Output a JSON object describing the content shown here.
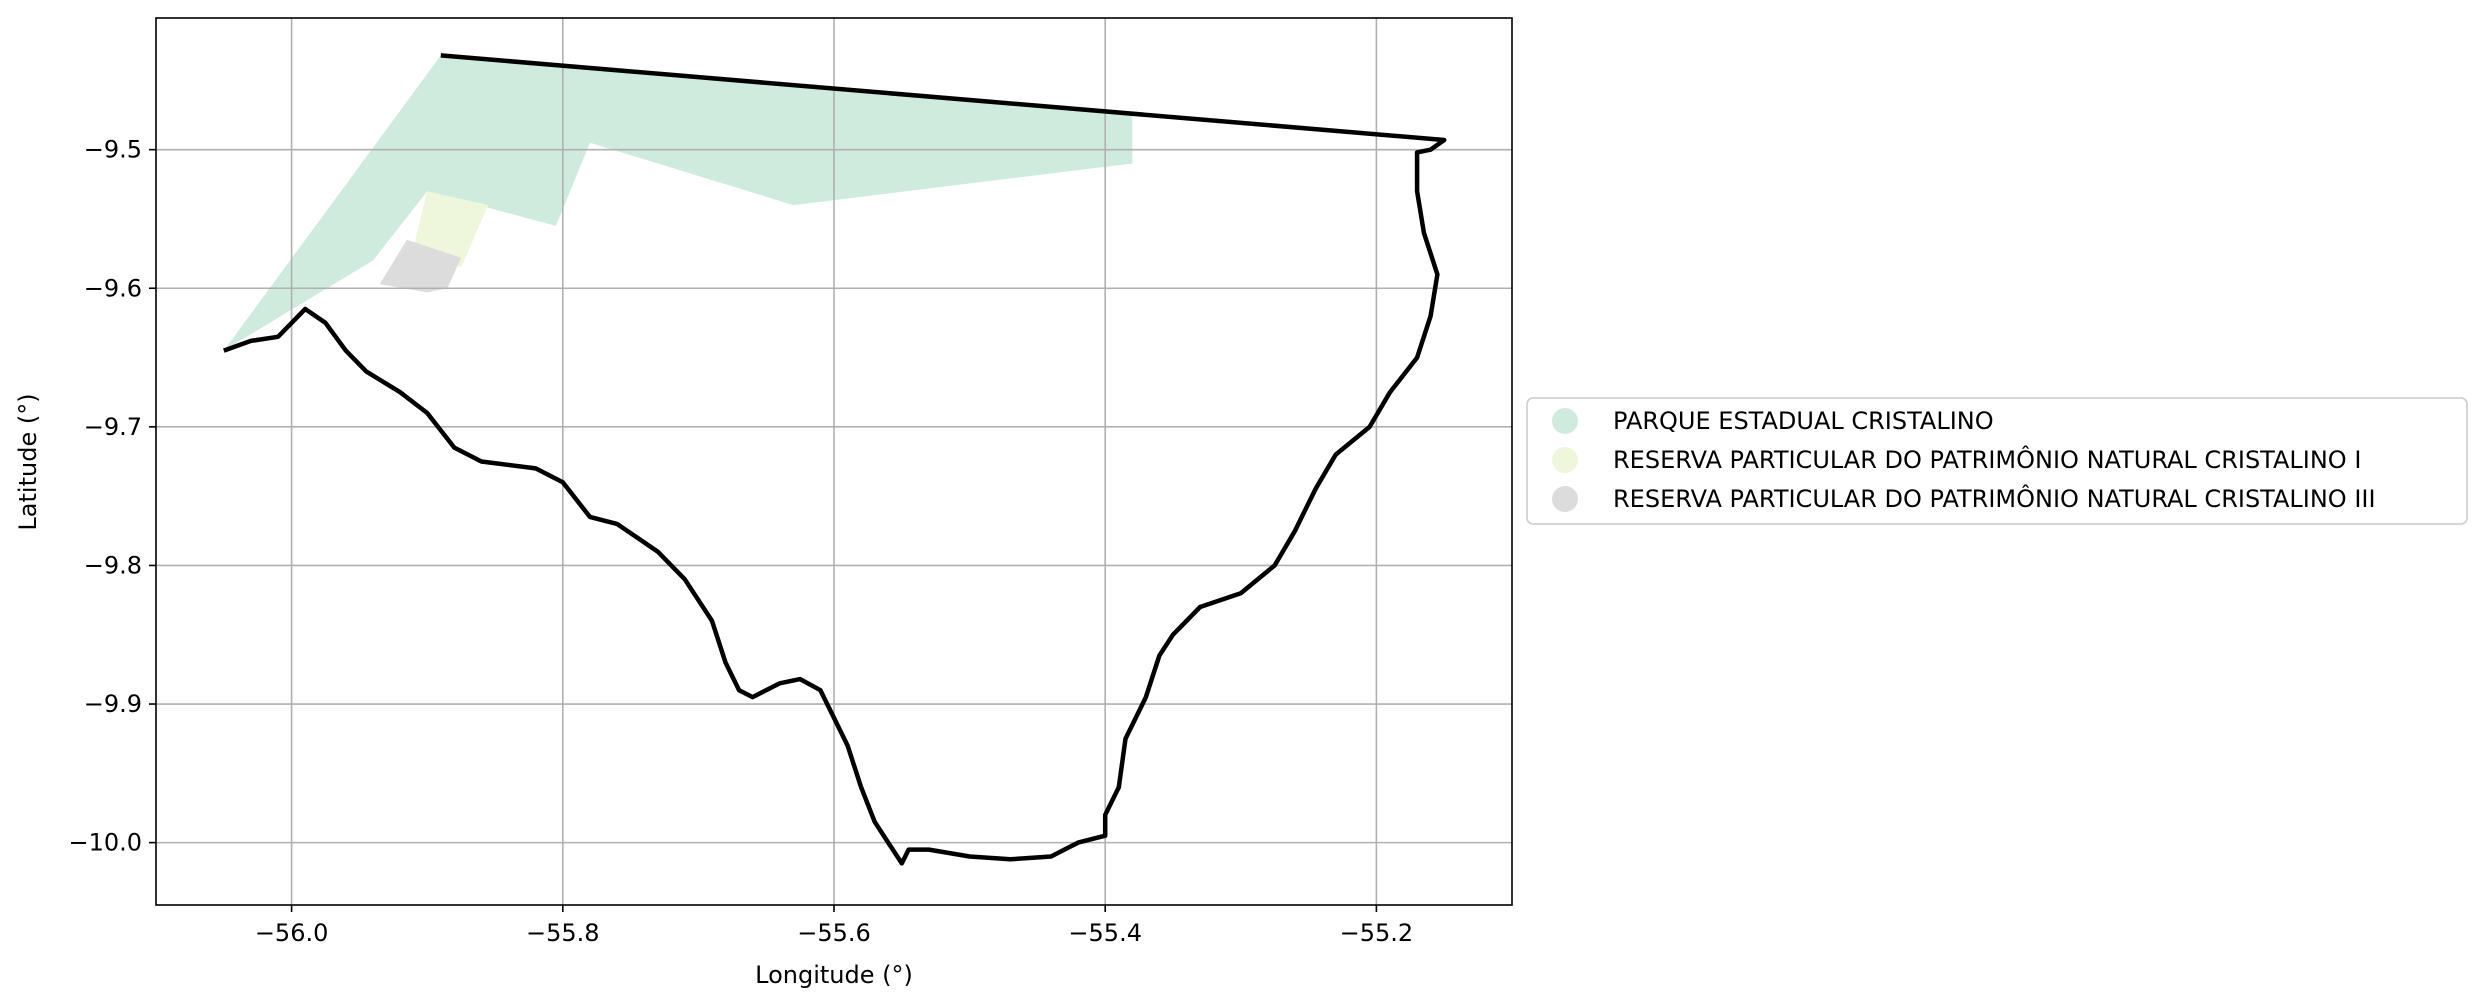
{
  "chart_data": {
    "type": "map",
    "xlabel": "Longitude (°)",
    "ylabel": "Latitude (°)",
    "xlim": [
      -56.1,
      -55.1
    ],
    "ylim": [
      -10.045,
      -9.405
    ],
    "xticks": [
      -56.0,
      -55.8,
      -55.6,
      -55.4,
      -55.2
    ],
    "xtick_labels": [
      "−56.0",
      "−55.8",
      "−55.6",
      "−55.4",
      "−55.2"
    ],
    "yticks": [
      -9.5,
      -9.6,
      -9.7,
      -9.8,
      -9.9,
      -10.0
    ],
    "ytick_labels": [
      "−9.5",
      "−9.6",
      "−9.7",
      "−9.8",
      "−9.9",
      "−10.0"
    ],
    "grid": true,
    "legend_position": "right",
    "layers": [
      {
        "name": "PARQUE ESTADUAL CRISTALINO",
        "color": "#cfebde",
        "polygon": [
          [
            -55.89,
            -9.432
          ],
          [
            -55.38,
            -9.475
          ],
          [
            -55.38,
            -9.51
          ],
          [
            -55.63,
            -9.54
          ],
          [
            -55.78,
            -9.495
          ],
          [
            -55.805,
            -9.555
          ],
          [
            -55.9,
            -9.53
          ],
          [
            -55.94,
            -9.58
          ],
          [
            -56.05,
            -9.645
          ]
        ]
      },
      {
        "name": "RESERVA PARTICULAR DO PATRIMÔNIO NATURAL CRISTALINO I",
        "color": "#eef7dc",
        "polygon": [
          [
            -55.9,
            -9.53
          ],
          [
            -55.855,
            -9.54
          ],
          [
            -55.875,
            -9.585
          ],
          [
            -55.91,
            -9.57
          ]
        ]
      },
      {
        "name": "RESERVA PARTICULAR DO PATRIMÔNIO NATURAL CRISTALINO III",
        "color": "#dcdcdc",
        "polygon": [
          [
            -55.915,
            -9.565
          ],
          [
            -55.875,
            -9.578
          ],
          [
            -55.885,
            -9.6
          ],
          [
            -55.9,
            -9.603
          ],
          [
            -55.935,
            -9.597
          ]
        ]
      }
    ],
    "boundary": [
      [
        -55.89,
        -9.432
      ],
      [
        -55.15,
        -9.493
      ],
      [
        -55.16,
        -9.5
      ],
      [
        -55.17,
        -9.502
      ],
      [
        -55.17,
        -9.53
      ],
      [
        -55.165,
        -9.56
      ],
      [
        -55.155,
        -9.59
      ],
      [
        -55.16,
        -9.62
      ],
      [
        -55.17,
        -9.65
      ],
      [
        -55.19,
        -9.675
      ],
      [
        -55.205,
        -9.7
      ],
      [
        -55.23,
        -9.72
      ],
      [
        -55.245,
        -9.745
      ],
      [
        -55.26,
        -9.775
      ],
      [
        -55.275,
        -9.8
      ],
      [
        -55.3,
        -9.82
      ],
      [
        -55.33,
        -9.83
      ],
      [
        -55.35,
        -9.85
      ],
      [
        -55.36,
        -9.865
      ],
      [
        -55.37,
        -9.895
      ],
      [
        -55.385,
        -9.925
      ],
      [
        -55.39,
        -9.96
      ],
      [
        -55.4,
        -9.98
      ],
      [
        -55.4,
        -9.995
      ],
      [
        -55.42,
        -10.0
      ],
      [
        -55.44,
        -10.01
      ],
      [
        -55.47,
        -10.012
      ],
      [
        -55.5,
        -10.01
      ],
      [
        -55.53,
        -10.005
      ],
      [
        -55.545,
        -10.005
      ],
      [
        -55.55,
        -10.015
      ],
      [
        -55.56,
        -10.0
      ],
      [
        -55.57,
        -9.985
      ],
      [
        -55.58,
        -9.96
      ],
      [
        -55.59,
        -9.93
      ],
      [
        -55.6,
        -9.91
      ],
      [
        -55.61,
        -9.89
      ],
      [
        -55.625,
        -9.882
      ],
      [
        -55.64,
        -9.885
      ],
      [
        -55.66,
        -9.895
      ],
      [
        -55.67,
        -9.89
      ],
      [
        -55.68,
        -9.87
      ],
      [
        -55.69,
        -9.84
      ],
      [
        -55.71,
        -9.81
      ],
      [
        -55.73,
        -9.79
      ],
      [
        -55.76,
        -9.77
      ],
      [
        -55.78,
        -9.765
      ],
      [
        -55.8,
        -9.74
      ],
      [
        -55.82,
        -9.73
      ],
      [
        -55.86,
        -9.725
      ],
      [
        -55.88,
        -9.715
      ],
      [
        -55.9,
        -9.69
      ],
      [
        -55.92,
        -9.675
      ],
      [
        -55.945,
        -9.66
      ],
      [
        -55.96,
        -9.645
      ],
      [
        -55.975,
        -9.625
      ],
      [
        -55.99,
        -9.615
      ],
      [
        -56.0,
        -9.625
      ],
      [
        -56.01,
        -9.635
      ],
      [
        -56.03,
        -9.638
      ],
      [
        -56.05,
        -9.645
      ]
    ]
  }
}
